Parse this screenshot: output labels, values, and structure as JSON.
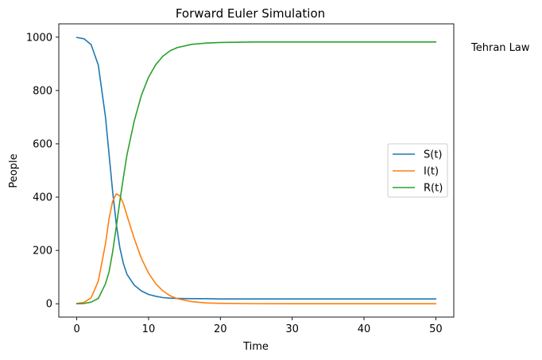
{
  "side_note": "Tehran Law",
  "chart_data": {
    "type": "line",
    "title": "Forward Euler Simulation",
    "xlabel": "Time",
    "ylabel": "People",
    "xlim": [
      -2.5,
      52.5
    ],
    "ylim": [
      -50,
      1050
    ],
    "xticks": [
      0,
      10,
      20,
      30,
      40,
      50
    ],
    "yticks": [
      0,
      200,
      400,
      600,
      800,
      1000
    ],
    "grid": false,
    "legend_position": "center-right",
    "x": [
      0,
      1,
      2,
      3,
      4,
      4.5,
      5,
      5.5,
      6,
      6.5,
      7,
      8,
      9,
      10,
      11,
      12,
      13,
      14,
      16,
      18,
      20,
      25,
      30,
      35,
      40,
      45,
      50
    ],
    "series": [
      {
        "name": "S(t)",
        "color": "#1f77b4",
        "values": [
          999,
          994,
          972,
          895,
          700,
          560,
          420,
          300,
          210,
          150,
          110,
          70,
          48,
          35,
          28,
          23,
          21,
          20,
          19,
          19,
          18,
          18,
          18,
          18,
          18,
          18,
          18
        ]
      },
      {
        "name": "I(t)",
        "color": "#ff7f0e",
        "values": [
          1,
          5,
          22,
          85,
          225,
          320,
          385,
          412,
          405,
          375,
          330,
          245,
          170,
          115,
          75,
          48,
          30,
          19,
          8,
          3,
          1.5,
          0.3,
          0,
          0,
          0,
          0,
          0
        ]
      },
      {
        "name": "R(t)",
        "color": "#2ca02c",
        "values": [
          0,
          1,
          6,
          20,
          75,
          120,
          195,
          288,
          385,
          475,
          560,
          685,
          782,
          850,
          897,
          929,
          949,
          961,
          973,
          978,
          980,
          982,
          982,
          982,
          982,
          982,
          982
        ]
      }
    ]
  }
}
